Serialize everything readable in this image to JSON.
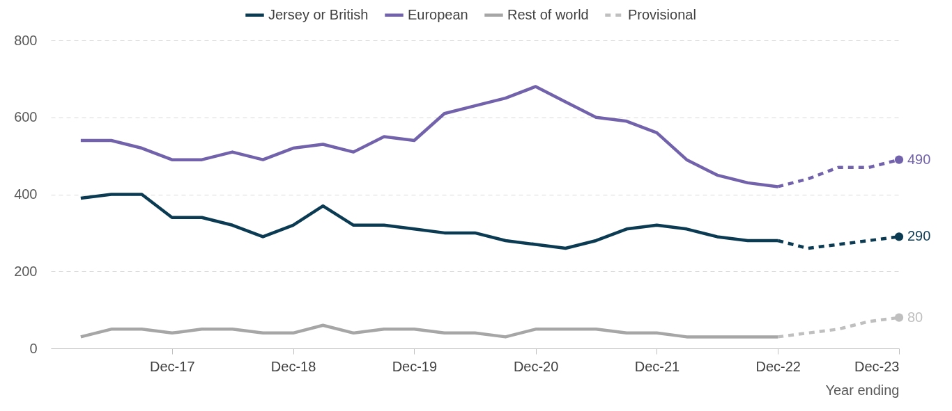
{
  "chart_data": {
    "type": "line",
    "xlabel": "Year ending",
    "xlim": [
      "2016-12",
      "2023-12"
    ],
    "xticks": [
      {
        "value": "2017-12",
        "label": "Dec-17"
      },
      {
        "value": "2018-12",
        "label": "Dec-18"
      },
      {
        "value": "2019-12",
        "label": "Dec-19"
      },
      {
        "value": "2020-12",
        "label": "Dec-20"
      },
      {
        "value": "2021-12",
        "label": "Dec-21"
      },
      {
        "value": "2022-12",
        "label": "Dec-22"
      },
      {
        "value": "2023-12",
        "label": "Dec-23"
      }
    ],
    "ylim": [
      0,
      800
    ],
    "yticks": [
      0,
      200,
      400,
      600,
      800
    ],
    "grid": "y",
    "legend": "top right",
    "line_style": "solid",
    "x": [
      "2017-03",
      "2017-06",
      "2017-09",
      "2017-12",
      "2018-03",
      "2018-06",
      "2018-09",
      "2018-12",
      "2019-03",
      "2019-06",
      "2019-09",
      "2019-12",
      "2020-03",
      "2020-06",
      "2020-09",
      "2020-12",
      "2021-03",
      "2021-06",
      "2021-09",
      "2021-12",
      "2022-03",
      "2022-06",
      "2022-09",
      "2022-12"
    ],
    "series": [
      {
        "name": "Jersey or British",
        "color": "#0b3a53",
        "values": [
          390,
          400,
          400,
          340,
          340,
          320,
          290,
          320,
          370,
          320,
          320,
          310,
          300,
          300,
          280,
          270,
          260,
          280,
          310,
          320,
          310,
          290,
          280,
          280
        ]
      },
      {
        "name": "European",
        "color": "#7262ac",
        "values": [
          540,
          540,
          520,
          490,
          490,
          510,
          490,
          520,
          530,
          510,
          550,
          540,
          610,
          630,
          650,
          680,
          640,
          600,
          590,
          560,
          490,
          450,
          430,
          420
        ]
      },
      {
        "name": "Rest of world",
        "color": "#a6a6a6",
        "values": [
          30,
          50,
          50,
          40,
          50,
          50,
          40,
          40,
          60,
          40,
          50,
          50,
          40,
          40,
          30,
          50,
          50,
          50,
          40,
          40,
          30,
          30,
          30,
          30
        ]
      },
      {
        "color": "#0b3a53",
        "line_style": "dashed",
        "x": [
          "2022-12",
          "2023-03",
          "2023-06",
          "2023-09",
          "2023-12"
        ],
        "values": [
          280,
          260,
          270,
          280,
          290
        ],
        "value_labels": [
          null,
          null,
          null,
          null,
          "290"
        ]
      },
      {
        "color": "#7262ac",
        "line_style": "dashed",
        "x": [
          "2022-12",
          "2023-03",
          "2023-06",
          "2023-09",
          "2023-12"
        ],
        "values": [
          420,
          440,
          470,
          470,
          490
        ],
        "value_labels": [
          null,
          null,
          null,
          null,
          "490"
        ]
      },
      {
        "name": "Provisional",
        "color": "#bfbfbf",
        "line_style": "dashed",
        "x": [
          "2022-12",
          "2023-03",
          "2023-06",
          "2023-09",
          "2023-12"
        ],
        "values": [
          30,
          40,
          50,
          70,
          80
        ],
        "value_labels": [
          null,
          null,
          null,
          null,
          "80"
        ]
      }
    ]
  }
}
